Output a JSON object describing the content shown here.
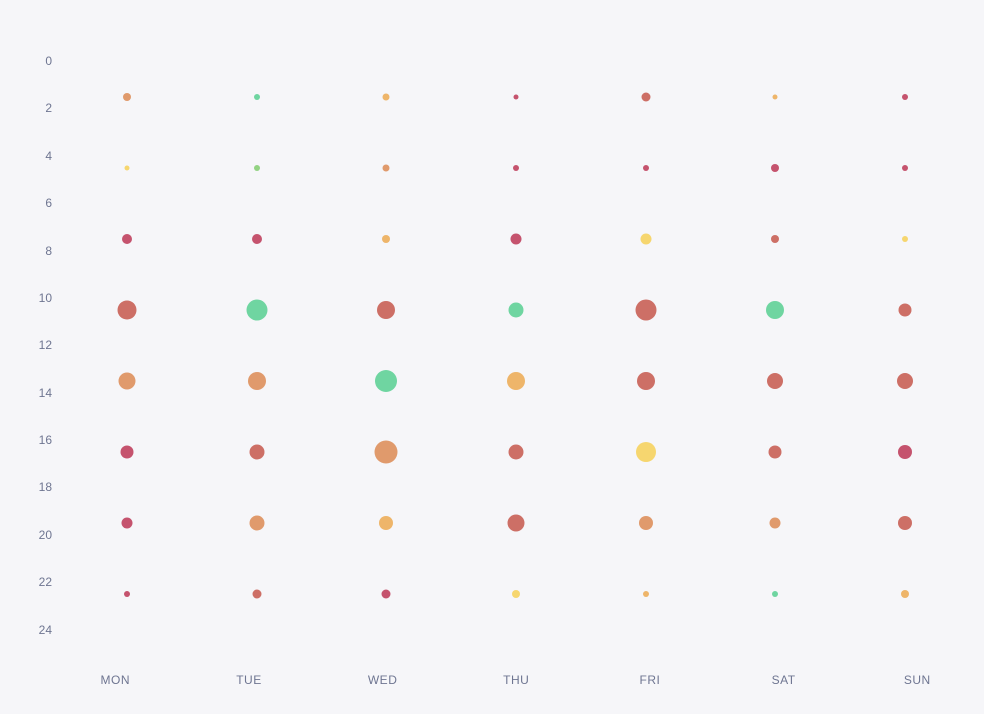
{
  "page": {
    "background": "#f6f6f9"
  },
  "chart_data": {
    "type": "scatter",
    "variant": "punch-card-bubble",
    "title": "",
    "xlabel": "",
    "ylabel": "",
    "x_categories": [
      "MON",
      "TUE",
      "WED",
      "THU",
      "FRI",
      "SAT",
      "SUN"
    ],
    "y_ticks": [
      0,
      2,
      4,
      6,
      8,
      10,
      12,
      14,
      16,
      18,
      20,
      22,
      24
    ],
    "y_range": [
      0,
      24
    ],
    "grid": false,
    "legend_position": "none",
    "axis_label_color": "#6e7591",
    "palette": {
      "green": "#6fd5a1",
      "green2": "#93d383",
      "yellow": "#f6d66f",
      "amber": "#eeb56a",
      "orange": "#e09a6c",
      "salmon": "#cd6f66",
      "crimson": "#c5536e"
    },
    "points": [
      {
        "day": "MON",
        "hour": 1.5,
        "size": 8,
        "color": "orange"
      },
      {
        "day": "MON",
        "hour": 4.5,
        "size": 5,
        "color": "yellow"
      },
      {
        "day": "MON",
        "hour": 7.5,
        "size": 10,
        "color": "crimson"
      },
      {
        "day": "MON",
        "hour": 10.5,
        "size": 19,
        "color": "salmon"
      },
      {
        "day": "MON",
        "hour": 13.5,
        "size": 17,
        "color": "orange"
      },
      {
        "day": "MON",
        "hour": 16.5,
        "size": 13,
        "color": "crimson"
      },
      {
        "day": "MON",
        "hour": 19.5,
        "size": 11,
        "color": "crimson"
      },
      {
        "day": "MON",
        "hour": 22.5,
        "size": 6,
        "color": "crimson"
      },
      {
        "day": "TUE",
        "hour": 1.5,
        "size": 6,
        "color": "green"
      },
      {
        "day": "TUE",
        "hour": 4.5,
        "size": 6,
        "color": "green2"
      },
      {
        "day": "TUE",
        "hour": 7.5,
        "size": 10,
        "color": "crimson"
      },
      {
        "day": "TUE",
        "hour": 10.5,
        "size": 21,
        "color": "green"
      },
      {
        "day": "TUE",
        "hour": 13.5,
        "size": 18,
        "color": "orange"
      },
      {
        "day": "TUE",
        "hour": 16.5,
        "size": 15,
        "color": "salmon"
      },
      {
        "day": "TUE",
        "hour": 19.5,
        "size": 15,
        "color": "orange"
      },
      {
        "day": "TUE",
        "hour": 22.5,
        "size": 9,
        "color": "salmon"
      },
      {
        "day": "WED",
        "hour": 1.5,
        "size": 7,
        "color": "amber"
      },
      {
        "day": "WED",
        "hour": 4.5,
        "size": 7,
        "color": "orange"
      },
      {
        "day": "WED",
        "hour": 7.5,
        "size": 8,
        "color": "amber"
      },
      {
        "day": "WED",
        "hour": 10.5,
        "size": 18,
        "color": "salmon"
      },
      {
        "day": "WED",
        "hour": 13.5,
        "size": 22,
        "color": "green"
      },
      {
        "day": "WED",
        "hour": 16.5,
        "size": 23,
        "color": "orange"
      },
      {
        "day": "WED",
        "hour": 19.5,
        "size": 14,
        "color": "amber"
      },
      {
        "day": "WED",
        "hour": 22.5,
        "size": 9,
        "color": "crimson"
      },
      {
        "day": "THU",
        "hour": 1.5,
        "size": 5,
        "color": "crimson"
      },
      {
        "day": "THU",
        "hour": 4.5,
        "size": 6,
        "color": "crimson"
      },
      {
        "day": "THU",
        "hour": 7.5,
        "size": 11,
        "color": "crimson"
      },
      {
        "day": "THU",
        "hour": 10.5,
        "size": 15,
        "color": "green"
      },
      {
        "day": "THU",
        "hour": 13.5,
        "size": 18,
        "color": "amber"
      },
      {
        "day": "THU",
        "hour": 16.5,
        "size": 15,
        "color": "salmon"
      },
      {
        "day": "THU",
        "hour": 19.5,
        "size": 17,
        "color": "salmon"
      },
      {
        "day": "THU",
        "hour": 22.5,
        "size": 8,
        "color": "yellow"
      },
      {
        "day": "FRI",
        "hour": 1.5,
        "size": 9,
        "color": "salmon"
      },
      {
        "day": "FRI",
        "hour": 4.5,
        "size": 6,
        "color": "crimson"
      },
      {
        "day": "FRI",
        "hour": 7.5,
        "size": 11,
        "color": "yellow"
      },
      {
        "day": "FRI",
        "hour": 10.5,
        "size": 21,
        "color": "salmon"
      },
      {
        "day": "FRI",
        "hour": 13.5,
        "size": 18,
        "color": "salmon"
      },
      {
        "day": "FRI",
        "hour": 16.5,
        "size": 20,
        "color": "yellow"
      },
      {
        "day": "FRI",
        "hour": 19.5,
        "size": 14,
        "color": "orange"
      },
      {
        "day": "FRI",
        "hour": 22.5,
        "size": 6,
        "color": "amber"
      },
      {
        "day": "SAT",
        "hour": 1.5,
        "size": 5,
        "color": "amber"
      },
      {
        "day": "SAT",
        "hour": 4.5,
        "size": 8,
        "color": "crimson"
      },
      {
        "day": "SAT",
        "hour": 7.5,
        "size": 8,
        "color": "salmon"
      },
      {
        "day": "SAT",
        "hour": 10.5,
        "size": 18,
        "color": "green"
      },
      {
        "day": "SAT",
        "hour": 13.5,
        "size": 16,
        "color": "salmon"
      },
      {
        "day": "SAT",
        "hour": 16.5,
        "size": 13,
        "color": "salmon"
      },
      {
        "day": "SAT",
        "hour": 19.5,
        "size": 11,
        "color": "orange"
      },
      {
        "day": "SAT",
        "hour": 22.5,
        "size": 6,
        "color": "green"
      },
      {
        "day": "SUN",
        "hour": 1.5,
        "size": 6,
        "color": "crimson"
      },
      {
        "day": "SUN",
        "hour": 4.5,
        "size": 6,
        "color": "crimson"
      },
      {
        "day": "SUN",
        "hour": 7.5,
        "size": 6,
        "color": "yellow"
      },
      {
        "day": "SUN",
        "hour": 10.5,
        "size": 13,
        "color": "salmon"
      },
      {
        "day": "SUN",
        "hour": 13.5,
        "size": 16,
        "color": "salmon"
      },
      {
        "day": "SUN",
        "hour": 16.5,
        "size": 14,
        "color": "crimson"
      },
      {
        "day": "SUN",
        "hour": 19.5,
        "size": 14,
        "color": "salmon"
      },
      {
        "day": "SUN",
        "hour": 22.5,
        "size": 8,
        "color": "amber"
      }
    ]
  }
}
